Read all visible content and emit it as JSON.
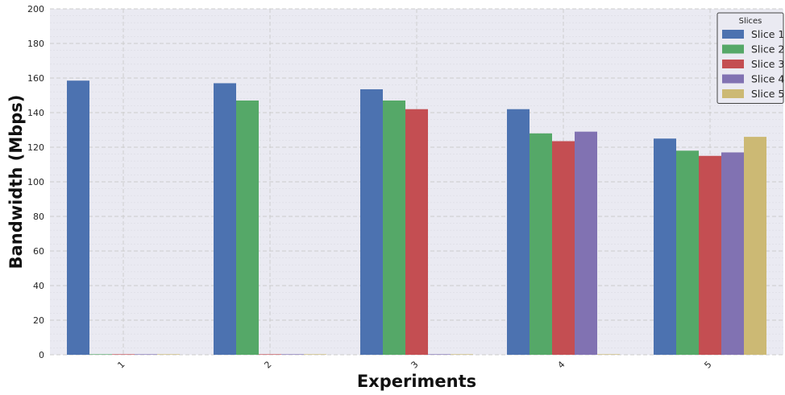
{
  "chart_data": {
    "type": "bar",
    "title": "",
    "xlabel": "Experiments",
    "ylabel": "Bandwidth (Mbps)",
    "categories": [
      "1",
      "2",
      "3",
      "4",
      "5"
    ],
    "ylim": [
      0,
      200
    ],
    "yticks": [
      0,
      20,
      40,
      60,
      80,
      100,
      120,
      140,
      160,
      180,
      200
    ],
    "grid": true,
    "legend": {
      "title": "Slices",
      "placement": "top-right"
    },
    "series": [
      {
        "name": "Slice 1",
        "color": "#4c72b0",
        "values": [
          158.5,
          157,
          153.5,
          142,
          125
        ]
      },
      {
        "name": "Slice 2",
        "color": "#55a868",
        "values": [
          0.3,
          147,
          147,
          128,
          118
        ]
      },
      {
        "name": "Slice 3",
        "color": "#c44e52",
        "values": [
          0.3,
          0.3,
          142,
          123.5,
          115
        ]
      },
      {
        "name": "Slice 4",
        "color": "#8172b2",
        "values": [
          0.3,
          0.3,
          0.3,
          129,
          117
        ]
      },
      {
        "name": "Slice 5",
        "color": "#ccb974",
        "values": [
          0.3,
          0.3,
          0.3,
          0.3,
          126
        ]
      }
    ]
  },
  "colors": {
    "plot_background": "#eaeaf2",
    "grid_major": "#cccccc",
    "grid_minor": "#dcdce4"
  }
}
